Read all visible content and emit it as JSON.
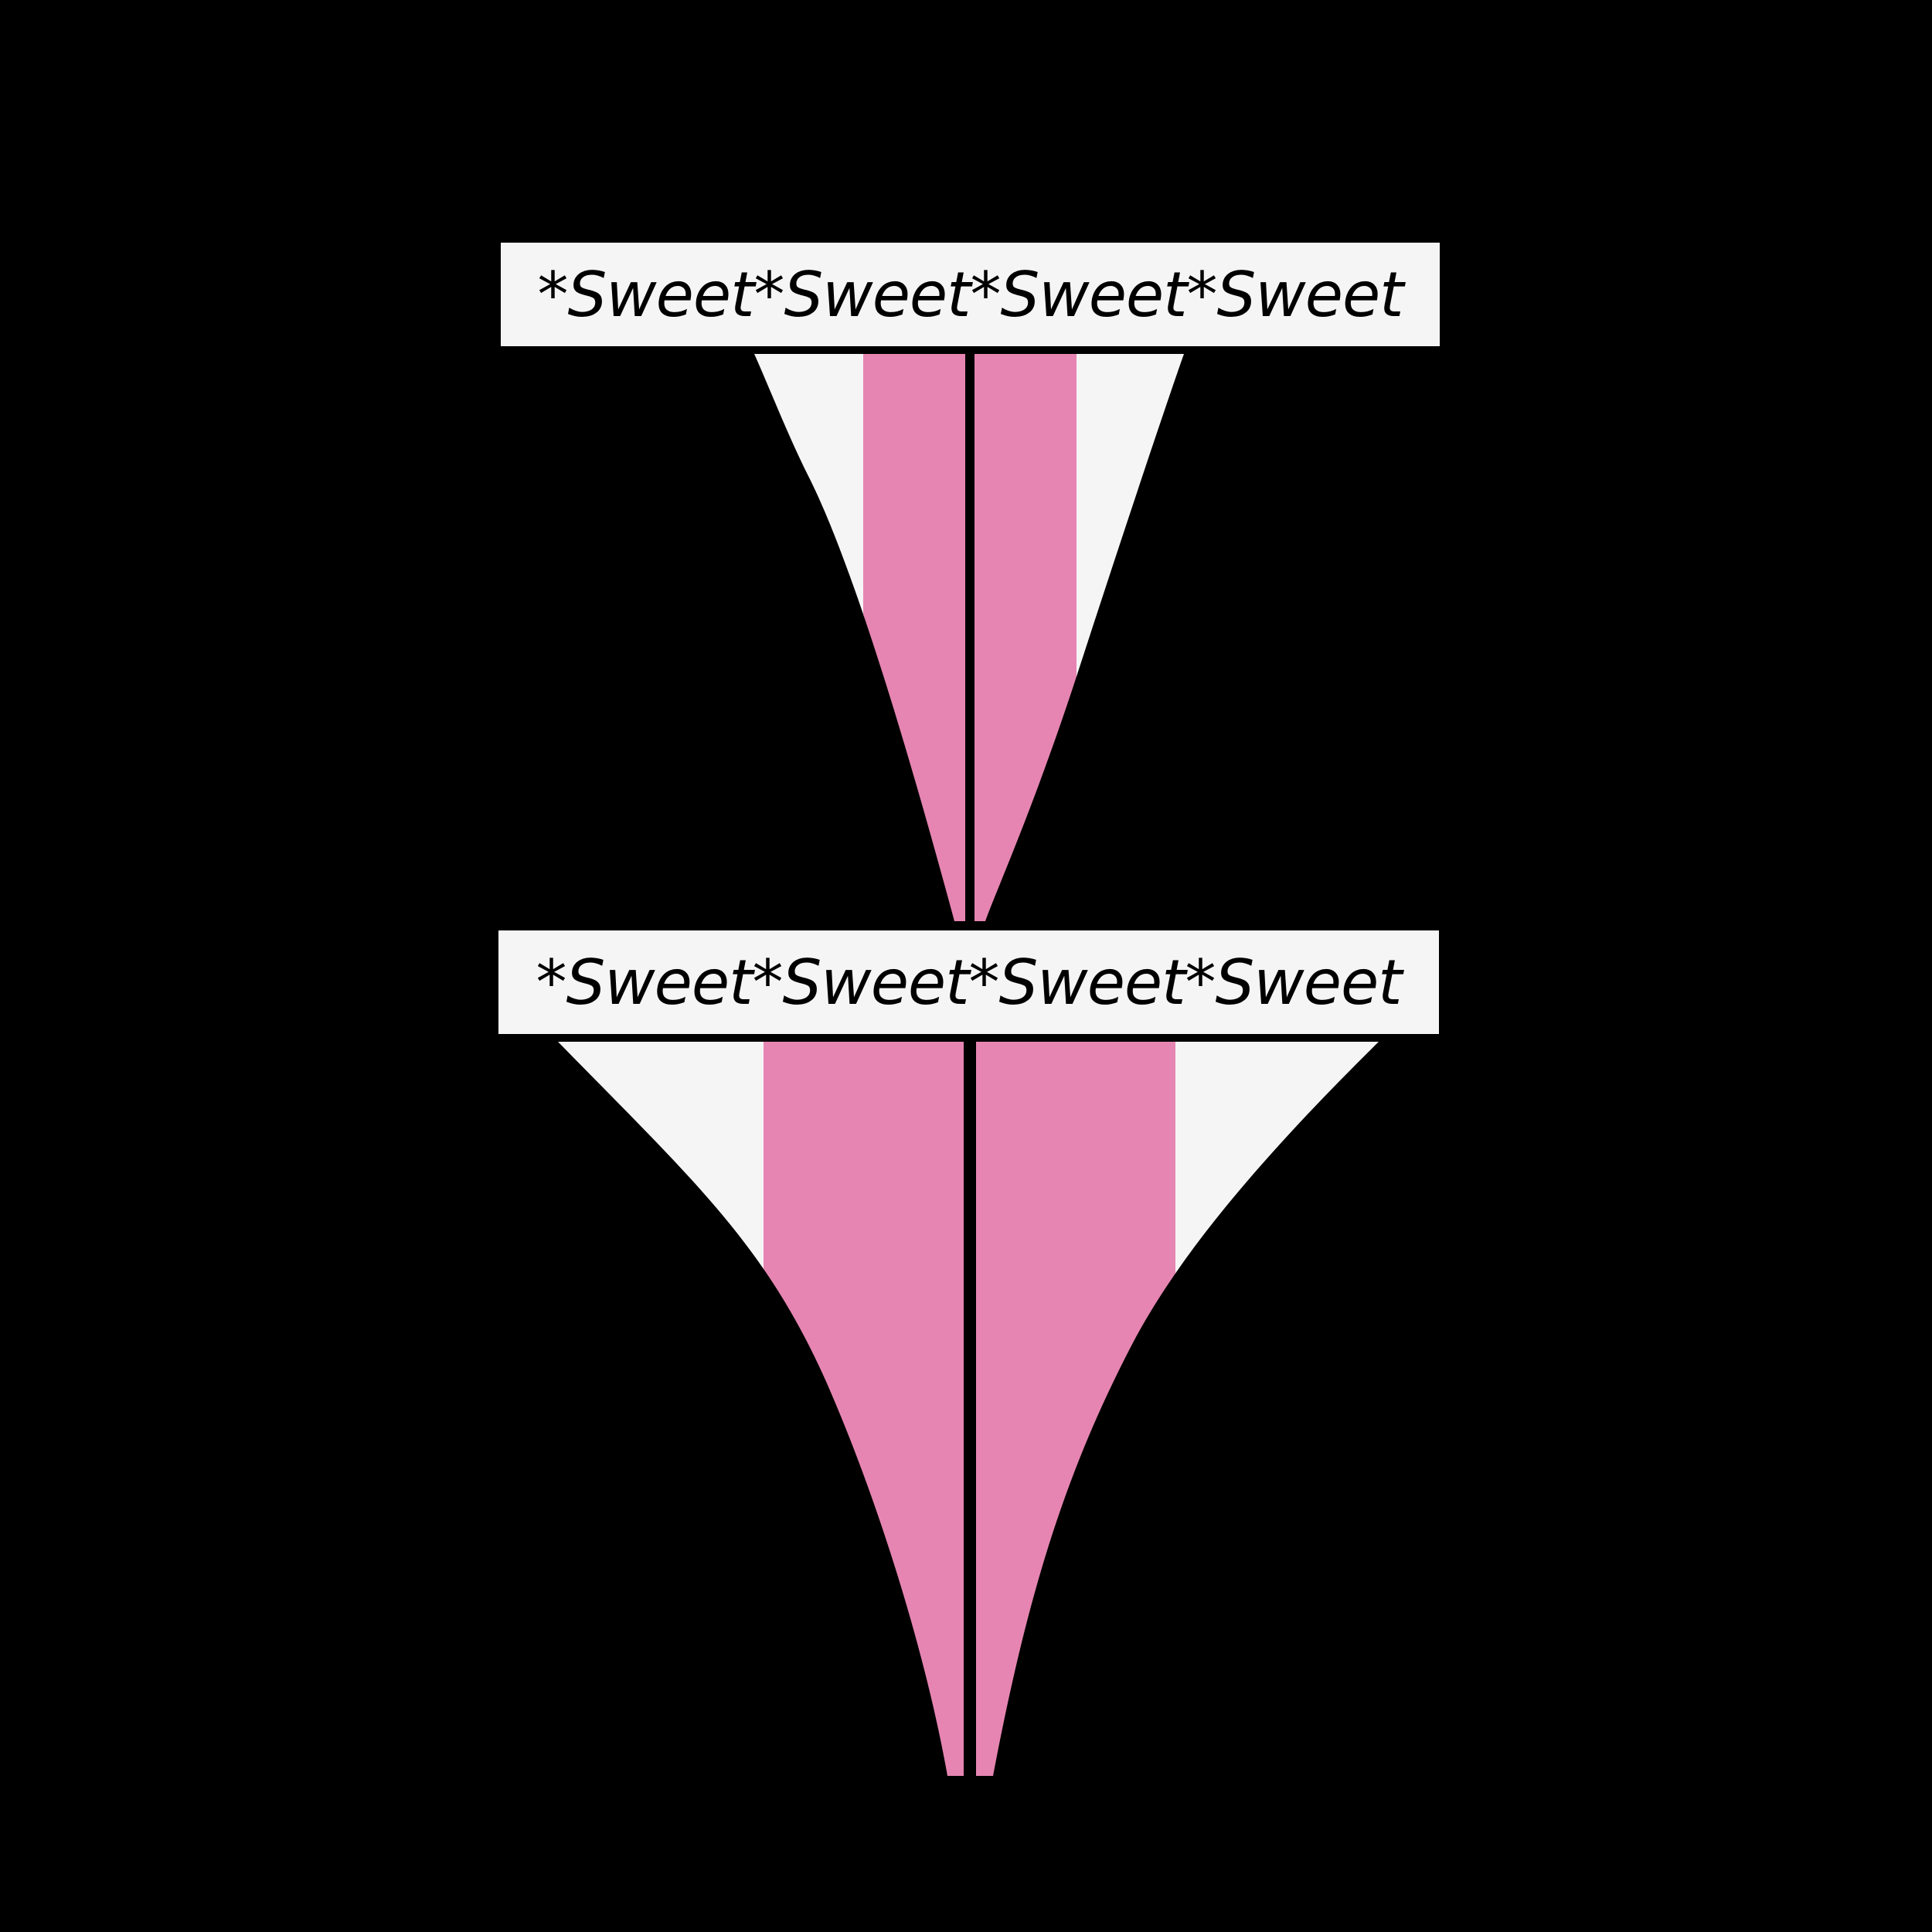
{
  "top_piece": {
    "waistband_text": "*Sweet*Sweet*Sweet*Sweet"
  },
  "bottom_piece": {
    "waistband_text": "*Sweet*Sweet*Sweet*Sweet"
  },
  "colors": {
    "background": "#000000",
    "waistband": "#f5f5f5",
    "white_panel": "#f5f5f5",
    "pink_panel": "#e685b2",
    "text": "#000000"
  }
}
